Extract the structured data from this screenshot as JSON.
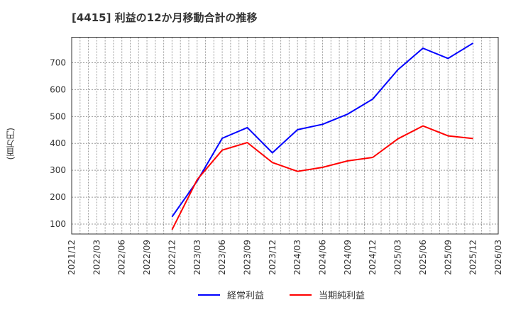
{
  "title": "[4415]  利益の12か月移動合計の推移",
  "y_axis_label": "(百万円)",
  "colors": {
    "series_blue": "#0000ff",
    "series_red": "#ff0000",
    "grid": "#999999",
    "axis": "#333333"
  },
  "legend": [
    {
      "label": "経常利益",
      "color": "#0000ff"
    },
    {
      "label": "当期純利益",
      "color": "#ff0000"
    }
  ],
  "chart_data": {
    "type": "line",
    "title": "[4415]  利益の12か月移動合計の推移",
    "xlabel": "",
    "ylabel": "(百万円)",
    "x_tick_labels": [
      "2021/12",
      "2022/03",
      "2022/06",
      "2022/09",
      "2022/12",
      "2023/03",
      "2023/06",
      "2023/09",
      "2023/12",
      "2024/03",
      "2024/06",
      "2024/09",
      "2024/12",
      "2025/03",
      "2025/06",
      "2025/09",
      "2025/12",
      "2026/03"
    ],
    "y_ticks": [
      100,
      200,
      300,
      400,
      500,
      600,
      700
    ],
    "ylim": [
      63,
      795
    ],
    "grid": true,
    "legend_position": "bottom",
    "categories": [
      "2022/12",
      "2023/03",
      "2023/06",
      "2023/09",
      "2023/12",
      "2024/03",
      "2024/06",
      "2024/09",
      "2024/12",
      "2025/03",
      "2025/06",
      "2025/09",
      "2025/12"
    ],
    "series": [
      {
        "name": "経常利益",
        "color": "#0000ff",
        "values": [
          127,
          260,
          419,
          459,
          365,
          451,
          471,
          509,
          565,
          674,
          754,
          716,
          773
        ]
      },
      {
        "name": "当期純利益",
        "color": "#ff0000",
        "values": [
          79,
          265,
          375,
          403,
          329,
          296,
          311,
          335,
          348,
          417,
          465,
          428,
          418
        ]
      }
    ]
  }
}
